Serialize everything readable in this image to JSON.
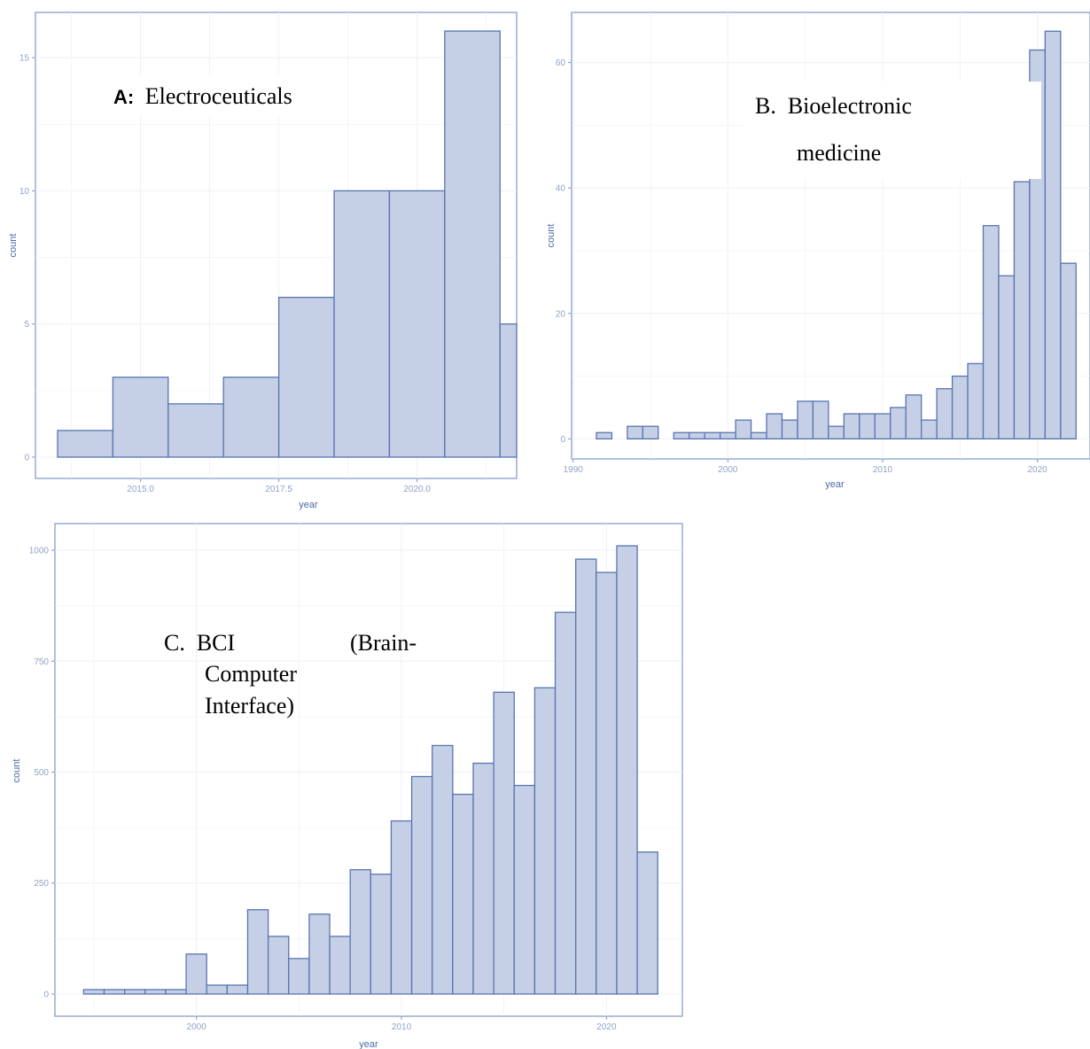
{
  "colors": {
    "bar_fill": "#c5d0e6",
    "bar_stroke": "#5a74b0",
    "frame": "#7f95c8",
    "grid": "#eef0f5",
    "tick_text": "#8fa3c8",
    "axis_title": "#4a6aa6"
  },
  "chart_data": [
    {
      "id": "A",
      "type": "bar",
      "label_prefix": "A:",
      "label_text": "Electroceuticals",
      "xlabel": "year",
      "ylabel": "count",
      "xlim": [
        2013.1,
        2021.8
      ],
      "ylim": [
        -0.8,
        16.7
      ],
      "binwidth": 1,
      "x_ticks": [
        2015.0,
        2017.5,
        2020.0
      ],
      "x_tick_labels": [
        "2015.0",
        "2017.5",
        "2020.0"
      ],
      "y_ticks": [
        0,
        5,
        10,
        15
      ],
      "y_tick_labels": [
        "0",
        "5",
        "10",
        "15"
      ],
      "x": [
        2014,
        2015,
        2016,
        2017,
        2018,
        2019,
        2020,
        2021,
        2022
      ],
      "values": [
        1,
        3,
        2,
        3,
        6,
        10,
        10,
        16,
        5
      ]
    },
    {
      "id": "B",
      "type": "bar",
      "label_prefix": "",
      "label_text": "B.  Bioelectronic",
      "label_text_line2": "medicine",
      "xlabel": "year",
      "ylabel": "count",
      "xlim": [
        1989.9,
        2023.4
      ],
      "ylim": [
        -3.2,
        68
      ],
      "binwidth": 1,
      "x_ticks": [
        1990,
        2000,
        2010,
        2020
      ],
      "x_tick_labels": [
        "1990",
        "2000",
        "2010",
        "2020"
      ],
      "y_ticks": [
        0,
        20,
        40,
        60
      ],
      "y_tick_labels": [
        "0",
        "20",
        "40",
        "60"
      ],
      "x": [
        1992,
        1993,
        1994,
        1995,
        1996,
        1997,
        1998,
        1999,
        2000,
        2001,
        2002,
        2003,
        2004,
        2005,
        2006,
        2007,
        2008,
        2009,
        2010,
        2011,
        2012,
        2013,
        2014,
        2015,
        2016,
        2017,
        2018,
        2019,
        2020,
        2021,
        2022
      ],
      "values": [
        1,
        0,
        2,
        2,
        0,
        1,
        1,
        1,
        1,
        3,
        1,
        4,
        3,
        6,
        6,
        2,
        4,
        4,
        4,
        5,
        7,
        3,
        8,
        10,
        12,
        34,
        26,
        41,
        62,
        65,
        28
      ]
    },
    {
      "id": "C",
      "type": "bar",
      "label_prefix": "",
      "label_text": "C.  BCI",
      "label_text_right": "(Brain-",
      "label_text_line2": "Computer",
      "label_text_line3": "Interface)",
      "xlabel": "year",
      "ylabel": "count",
      "xlim": [
        1993.1,
        2023.7
      ],
      "ylim": [
        -50,
        1060
      ],
      "binwidth": 1,
      "x_ticks": [
        2000,
        2010,
        2020
      ],
      "x_tick_labels": [
        "2000",
        "2010",
        "2020"
      ],
      "y_ticks": [
        0,
        250,
        500,
        750,
        1000
      ],
      "y_tick_labels": [
        "0",
        "250",
        "500",
        "750",
        "1000"
      ],
      "x": [
        1995,
        1996,
        1997,
        1998,
        1999,
        2000,
        2001,
        2002,
        2003,
        2004,
        2005,
        2006,
        2007,
        2008,
        2009,
        2010,
        2011,
        2012,
        2013,
        2014,
        2015,
        2016,
        2017,
        2018,
        2019,
        2020,
        2021,
        2022
      ],
      "values": [
        10,
        10,
        10,
        10,
        10,
        90,
        20,
        20,
        190,
        130,
        80,
        180,
        130,
        280,
        270,
        390,
        490,
        560,
        450,
        520,
        680,
        470,
        690,
        860,
        980,
        950,
        1010,
        320
      ]
    }
  ]
}
